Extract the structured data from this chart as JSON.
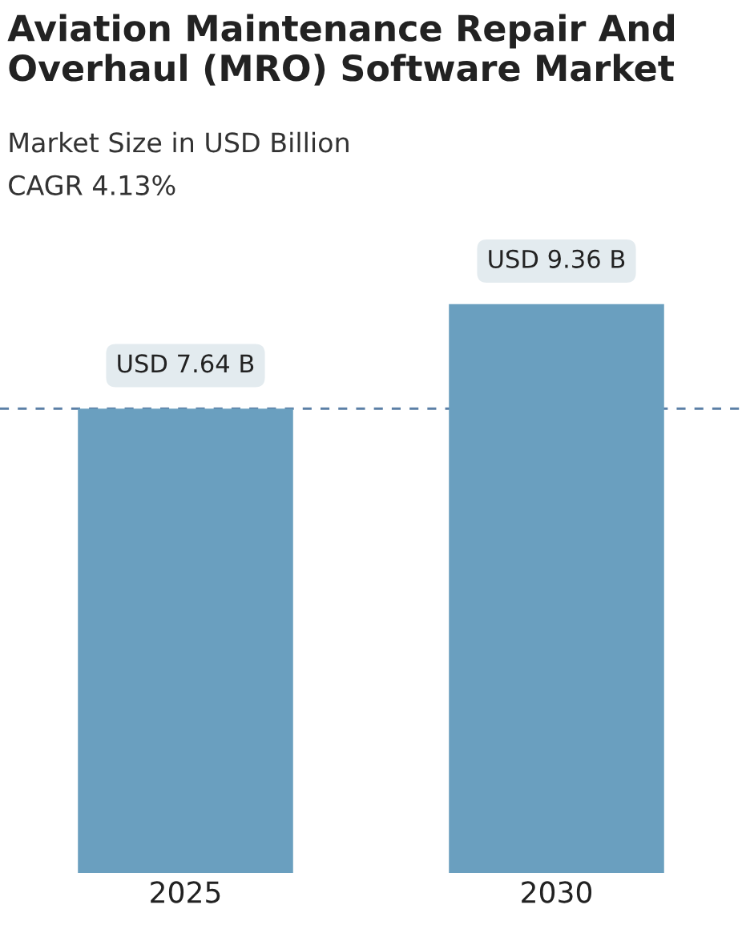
{
  "chart_data": {
    "type": "bar",
    "title": "Aviation Maintenance Repair And Overhaul (MRO) Software Market",
    "subtitle": "Market Size in USD Billion",
    "annotations": [
      "CAGR 4.13%"
    ],
    "categories": [
      "2025",
      "2030"
    ],
    "values": [
      7.64,
      9.36
    ],
    "value_labels": [
      "USD 7.64 B",
      "USD 9.36 B"
    ],
    "color": "#6a9fbf",
    "ref_lines": [
      {
        "axis": "y",
        "value": 7.64,
        "color": "#5b7fa6",
        "line_style": "dashed"
      }
    ],
    "tick_labels": "x",
    "grid": false,
    "legend": false
  }
}
